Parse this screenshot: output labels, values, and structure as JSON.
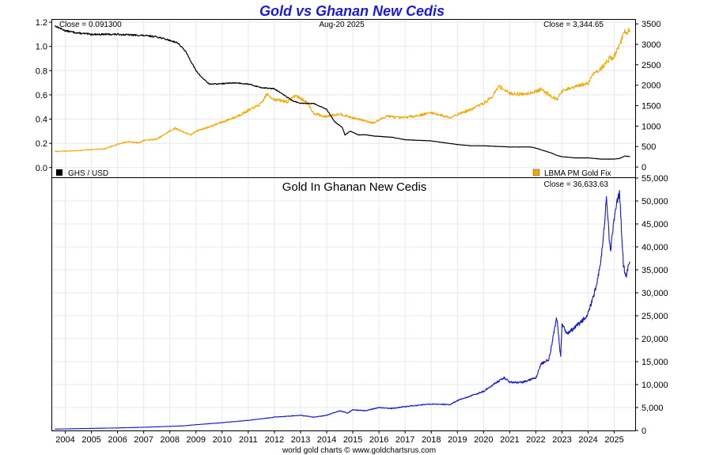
{
  "title": "Gold vs Ghanan New Cedis",
  "footer": "world gold charts © www.goldchartsrus.com",
  "colors": {
    "title": "#1a1adc",
    "ghs_line": "#000000",
    "gold_line": "#f5a800",
    "gold_ghs_line": "#1414d2"
  },
  "chart_data": [
    {
      "type": "line",
      "header": {
        "left": "Close = 0.091300",
        "center": "Aug-20  2025",
        "right": "Close = 3,344.65"
      },
      "x_range": [
        2003.5,
        2025.8
      ],
      "y_left": {
        "range": [
          -0.08,
          1.22
        ],
        "ticks": [
          "0.0",
          "0.2",
          "0.4",
          "0.6",
          "0.8",
          "1.0",
          "1.2"
        ],
        "tick_values": [
          0,
          0.2,
          0.4,
          0.6,
          0.8,
          1.0,
          1.2
        ]
      },
      "y_right": {
        "range": [
          -250,
          3600
        ],
        "ticks": [
          "0",
          "500",
          "1000",
          "1500",
          "2000",
          "2500",
          "3000",
          "3500"
        ],
        "tick_values": [
          0,
          500,
          1000,
          1500,
          2000,
          2500,
          3000,
          3500
        ]
      },
      "legend": {
        "placement": "bottom",
        "left_label": "GHS / USD",
        "right_label": "LBMA PM Gold Fix"
      },
      "series": [
        {
          "name": "GHS / USD",
          "axis": "left",
          "color": "#000000",
          "x": [
            2003.6,
            2004.0,
            2004.5,
            2005.0,
            2006.0,
            2007.0,
            2007.5,
            2008.0,
            2008.3,
            2008.6,
            2008.8,
            2009.0,
            2009.2,
            2009.5,
            2009.8,
            2010.5,
            2011.0,
            2011.5,
            2012.0,
            2012.5,
            2012.7,
            2013.0,
            2013.5,
            2014.0,
            2014.3,
            2014.6,
            2014.7,
            2014.9,
            2015.2,
            2015.5,
            2015.8,
            2016.5,
            2017.0,
            2018.0,
            2019.0,
            2019.5,
            2020.0,
            2021.0,
            2021.8,
            2022.0,
            2022.3,
            2022.6,
            2022.8,
            2023.0,
            2023.5,
            2024.0,
            2024.5,
            2025.0,
            2025.2,
            2025.4,
            2025.6
          ],
          "y": [
            1.17,
            1.13,
            1.11,
            1.1,
            1.1,
            1.09,
            1.08,
            1.05,
            1.03,
            0.96,
            0.88,
            0.8,
            0.75,
            0.69,
            0.69,
            0.7,
            0.69,
            0.66,
            0.65,
            0.58,
            0.55,
            0.53,
            0.53,
            0.48,
            0.38,
            0.33,
            0.27,
            0.3,
            0.27,
            0.27,
            0.26,
            0.25,
            0.23,
            0.22,
            0.19,
            0.18,
            0.18,
            0.17,
            0.17,
            0.16,
            0.14,
            0.12,
            0.1,
            0.09,
            0.08,
            0.08,
            0.07,
            0.07,
            0.075,
            0.095,
            0.0913
          ]
        },
        {
          "name": "LBMA PM Gold Fix",
          "axis": "right",
          "color": "#f5a800",
          "x": [
            2003.6,
            2004.0,
            2004.5,
            2005.0,
            2005.5,
            2006.0,
            2006.4,
            2006.8,
            2007.0,
            2007.5,
            2008.0,
            2008.2,
            2008.8,
            2009.0,
            2009.5,
            2010.0,
            2010.5,
            2011.0,
            2011.5,
            2011.7,
            2012.0,
            2012.5,
            2012.8,
            2013.2,
            2013.5,
            2013.9,
            2014.5,
            2015.0,
            2015.8,
            2016.3,
            2016.8,
            2017.5,
            2018.0,
            2018.7,
            2019.0,
            2019.5,
            2019.8,
            2020.0,
            2020.3,
            2020.6,
            2021.0,
            2021.5,
            2022.0,
            2022.2,
            2022.8,
            2023.0,
            2023.5,
            2024.0,
            2024.2,
            2024.5,
            2024.8,
            2025.0,
            2025.2,
            2025.4,
            2025.6
          ],
          "y": [
            380,
            390,
            400,
            430,
            440,
            560,
            620,
            590,
            650,
            680,
            880,
            950,
            780,
            880,
            980,
            1100,
            1220,
            1380,
            1550,
            1780,
            1650,
            1600,
            1750,
            1600,
            1320,
            1230,
            1300,
            1200,
            1080,
            1250,
            1200,
            1260,
            1330,
            1210,
            1290,
            1400,
            1500,
            1560,
            1700,
            1980,
            1800,
            1780,
            1850,
            1900,
            1650,
            1850,
            1960,
            2050,
            2300,
            2400,
            2650,
            2700,
            3000,
            3300,
            3344.65
          ]
        }
      ]
    },
    {
      "type": "line",
      "title": "Gold In Ghanan New Cedis",
      "header": {
        "right": "Close = 36,633.63"
      },
      "x_range": [
        2003.5,
        2025.8
      ],
      "y_right": {
        "range": [
          0,
          55000
        ],
        "ticks": [
          "0",
          "5,000",
          "10,000",
          "15,000",
          "20,000",
          "25,000",
          "30,000",
          "35,000",
          "40,000",
          "45,000",
          "50,000",
          "55,000"
        ],
        "tick_values": [
          0,
          5000,
          10000,
          15000,
          20000,
          25000,
          30000,
          35000,
          40000,
          45000,
          50000,
          55000
        ]
      },
      "x_ticks": [
        "2004",
        "2005",
        "2006",
        "2007",
        "2008",
        "2009",
        "2010",
        "2011",
        "2012",
        "2013",
        "2014",
        "2015",
        "2016",
        "2017",
        "2018",
        "2019",
        "2020",
        "2021",
        "2022",
        "2023",
        "2024",
        "2025"
      ],
      "x_tick_values": [
        2004,
        2005,
        2006,
        2007,
        2008,
        2009,
        2010,
        2011,
        2012,
        2013,
        2014,
        2015,
        2016,
        2017,
        2018,
        2019,
        2020,
        2021,
        2022,
        2023,
        2024,
        2025
      ],
      "series": [
        {
          "name": "Gold In Ghanan New Cedis",
          "axis": "right",
          "color": "#1414d2",
          "x": [
            2003.6,
            2004.0,
            2005.0,
            2006.0,
            2007.0,
            2008.0,
            2008.5,
            2009.0,
            2010.0,
            2011.0,
            2012.0,
            2012.5,
            2013.0,
            2013.5,
            2014.0,
            2014.5,
            2014.8,
            2015.0,
            2015.5,
            2016.0,
            2016.5,
            2017.0,
            2018.0,
            2018.7,
            2019.0,
            2019.5,
            2020.0,
            2020.5,
            2020.8,
            2021.0,
            2021.5,
            2022.0,
            2022.2,
            2022.5,
            2022.8,
            2022.95,
            2023.0,
            2023.2,
            2023.5,
            2023.8,
            2024.0,
            2024.3,
            2024.5,
            2024.7,
            2024.85,
            2025.0,
            2025.2,
            2025.35,
            2025.45,
            2025.5,
            2025.6
          ],
          "y": [
            300,
            350,
            450,
            550,
            700,
            900,
            1000,
            1250,
            1700,
            2200,
            2900,
            3100,
            3300,
            2900,
            3300,
            4300,
            3800,
            4500,
            4300,
            5000,
            4800,
            5200,
            5800,
            5600,
            6500,
            7500,
            8500,
            10500,
            11500,
            10500,
            10500,
            11500,
            14500,
            15500,
            24500,
            16000,
            23000,
            21000,
            22500,
            24000,
            25500,
            31000,
            37500,
            50000,
            39000,
            46500,
            52000,
            36000,
            33500,
            35000,
            36633.63
          ]
        }
      ]
    }
  ]
}
